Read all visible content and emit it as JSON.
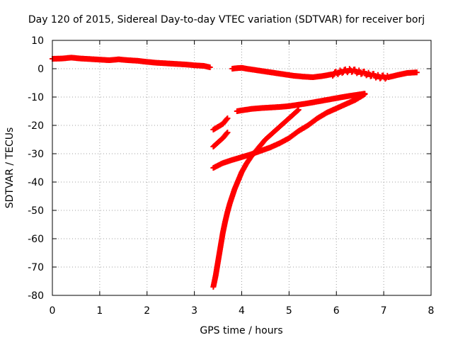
{
  "chart_data": {
    "type": "scatter",
    "title": "Day 120 of 2015, Sidereal Day-to-day VTEC variation (SDTVAR) for receiver borj",
    "xlabel": "GPS time / hours",
    "ylabel": "SDTVAR / TECUs",
    "xlim": [
      0,
      8
    ],
    "ylim": [
      -80,
      10
    ],
    "xticks": [
      "0",
      "1",
      "2",
      "3",
      "4",
      "5",
      "6",
      "7",
      "8"
    ],
    "yticks": [
      "10",
      "0",
      "-10",
      "-20",
      "-30",
      "-40",
      "-50",
      "-60",
      "-70",
      "-80"
    ],
    "grid": true,
    "marker": "plus",
    "color": "#ff0000",
    "series": [
      {
        "x": [
          0.0,
          0.2,
          0.4,
          0.6,
          0.8,
          1.0,
          1.2,
          1.4,
          1.6,
          1.8,
          2.0,
          2.2,
          2.4,
          2.6,
          2.8,
          3.0,
          3.2,
          3.33
        ],
        "y": [
          3.5,
          3.6,
          3.9,
          3.6,
          3.4,
          3.2,
          3.0,
          3.3,
          3.0,
          2.8,
          2.4,
          2.1,
          1.9,
          1.7,
          1.5,
          1.2,
          1.0,
          0.5
        ]
      },
      {
        "x": [
          3.8,
          3.9,
          4.0,
          4.1,
          4.3,
          4.5,
          4.7,
          4.9,
          5.1,
          5.3,
          5.5,
          5.7,
          5.9,
          6.1,
          6.3,
          6.5,
          6.7,
          6.9,
          7.1,
          7.3,
          7.5,
          7.7
        ],
        "y": [
          0.0,
          0.2,
          0.3,
          0.0,
          -0.5,
          -1.0,
          -1.5,
          -2.0,
          -2.5,
          -2.8,
          -3.0,
          -2.6,
          -2.0,
          -1.0,
          -0.5,
          -1.2,
          -2.0,
          -2.8,
          -3.0,
          -2.2,
          -1.5,
          -1.3
        ]
      },
      {
        "x": [
          3.4,
          3.5,
          3.6,
          3.7
        ],
        "y": [
          -21.5,
          -20.5,
          -19.5,
          -17.5
        ]
      },
      {
        "x": [
          3.4,
          3.5,
          3.6,
          3.7
        ],
        "y": [
          -27.5,
          -26.0,
          -24.5,
          -22.5
        ]
      },
      {
        "x": [
          3.9,
          4.0,
          4.2,
          4.4,
          4.6,
          4.8,
          5.0,
          5.2,
          5.4,
          5.6,
          5.8,
          6.0,
          6.2,
          6.4,
          6.6
        ],
        "y": [
          -15.0,
          -14.7,
          -14.2,
          -13.9,
          -13.7,
          -13.5,
          -13.2,
          -12.7,
          -12.2,
          -11.6,
          -11.0,
          -10.4,
          -9.8,
          -9.3,
          -8.8
        ]
      },
      {
        "x": [
          3.4,
          3.6,
          3.8,
          4.0,
          4.2,
          4.4,
          4.6,
          4.8,
          5.0,
          5.2,
          5.4,
          5.6,
          5.8,
          6.0,
          6.2,
          6.4,
          6.6
        ],
        "y": [
          -35.0,
          -33.3,
          -32.2,
          -31.2,
          -30.2,
          -29.0,
          -27.8,
          -26.3,
          -24.5,
          -22.0,
          -20.0,
          -17.5,
          -15.5,
          -14.0,
          -12.5,
          -11.0,
          -9.0
        ]
      },
      {
        "x": [
          3.4,
          3.45,
          3.5,
          3.55,
          3.6,
          3.65,
          3.7,
          3.75,
          3.8,
          3.85,
          3.9,
          3.95,
          4.0,
          4.1,
          4.2,
          4.3,
          4.4,
          4.5,
          4.6,
          4.7,
          4.8,
          4.9,
          5.0,
          5.1,
          5.2
        ],
        "y": [
          -77.0,
          -73.0,
          -68.0,
          -63.0,
          -58.0,
          -54.0,
          -50.5,
          -47.5,
          -45.0,
          -42.5,
          -40.5,
          -38.5,
          -36.5,
          -33.5,
          -31.0,
          -29.0,
          -27.0,
          -25.0,
          -23.5,
          -22.0,
          -20.5,
          -19.0,
          -17.5,
          -16.0,
          -14.5
        ]
      }
    ]
  }
}
